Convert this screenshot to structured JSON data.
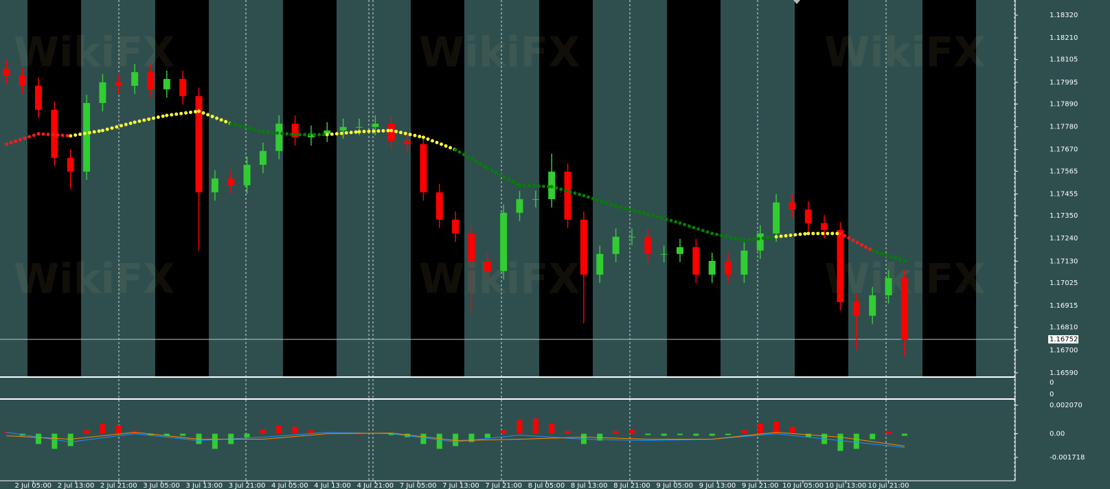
{
  "chart_data": {
    "type": "candlestick",
    "watermark": "WikiFX",
    "xlim": [
      -1.2,
      188.7
    ],
    "xticks": [
      {
        "value": 5,
        "label": "2 Jul 05:00"
      },
      {
        "value": 13,
        "label": "2 Jul 13:00"
      },
      {
        "value": 21,
        "label": "2 Jul 21:00"
      },
      {
        "value": 29,
        "label": "3 Jul 05:00"
      },
      {
        "value": 37,
        "label": "3 Jul 13:00"
      },
      {
        "value": 45,
        "label": "3 Jul 21:00"
      },
      {
        "value": 53,
        "label": "4 Jul 05:00"
      },
      {
        "value": 61,
        "label": "4 Jul 13:00"
      },
      {
        "value": 69,
        "label": "4 Jul 21:00"
      },
      {
        "value": 77,
        "label": "7 Jul 05:00"
      },
      {
        "value": 85,
        "label": "7 Jul 13:00"
      },
      {
        "value": 93,
        "label": "7 Jul 21:00"
      },
      {
        "value": 101,
        "label": "8 Jul 05:00"
      },
      {
        "value": 109,
        "label": "8 Jul 13:00"
      },
      {
        "value": 117,
        "label": "8 Jul 21:00"
      },
      {
        "value": 125,
        "label": "9 Jul 05:00"
      },
      {
        "value": 133,
        "label": "9 Jul 13:00"
      },
      {
        "value": 141,
        "label": "9 Jul 21:00"
      },
      {
        "value": 149,
        "label": "10 Jul 05:00"
      },
      {
        "value": 157,
        "label": "10 Jul 13:00"
      },
      {
        "value": 165,
        "label": "10 Jul 21:00"
      }
    ],
    "ylim": [
      1.16573,
      1.18393
    ],
    "yticks": [
      {
        "value": 1.1832,
        "label": "1.18320"
      },
      {
        "value": 1.1821,
        "label": "1.18210"
      },
      {
        "value": 1.18105,
        "label": "1.18105"
      },
      {
        "value": 1.17995,
        "label": "1.17995"
      },
      {
        "value": 1.1789,
        "label": "1.17890"
      },
      {
        "value": 1.1778,
        "label": "1.17780"
      },
      {
        "value": 1.1767,
        "label": "1.17670"
      },
      {
        "value": 1.17565,
        "label": "1.17565"
      },
      {
        "value": 1.17455,
        "label": "1.17455"
      },
      {
        "value": 1.1735,
        "label": "1.17350"
      },
      {
        "value": 1.1724,
        "label": "1.17240"
      },
      {
        "value": 1.1713,
        "label": "1.17130"
      },
      {
        "value": 1.17025,
        "label": "1.17025"
      },
      {
        "value": 1.16915,
        "label": "1.16915"
      },
      {
        "value": 1.1681,
        "label": "1.16810"
      },
      {
        "value": 1.167,
        "label": "1.16700"
      },
      {
        "value": 1.1659,
        "label": "1.16590"
      }
    ],
    "current_price": 1.16752,
    "up_color": "#32cd32",
    "down_color": "#ff0000",
    "x": [
      0,
      3,
      6,
      9,
      12,
      15,
      18,
      21,
      24,
      27,
      30,
      33,
      36,
      39,
      42,
      45,
      48,
      51,
      54,
      57,
      60,
      63,
      66,
      69,
      72,
      75,
      78,
      81,
      84,
      87,
      90,
      93,
      96,
      99,
      102,
      105,
      108,
      111,
      114,
      117,
      120,
      123,
      126,
      129,
      132,
      135,
      138,
      141,
      144,
      147,
      150,
      153,
      156,
      159,
      162,
      165,
      168
    ],
    "open": [
      1.18061,
      1.18028,
      1.17978,
      1.17862,
      1.17629,
      1.17563,
      1.17895,
      1.17995,
      1.17978,
      1.18044,
      1.17961,
      1.18011,
      1.17928,
      1.17463,
      1.1753,
      1.17497,
      1.17596,
      1.17663,
      1.17795,
      1.17729,
      1.17746,
      1.17762,
      1.17779,
      1.17779,
      1.17795,
      1.17712,
      1.17696,
      1.17463,
      1.17331,
      1.17264,
      1.17131,
      1.17082,
      1.17364,
      1.1743,
      1.1743,
      1.17563,
      1.17331,
      1.17065,
      1.17165,
      1.17248,
      1.17248,
      1.17165,
      1.17165,
      1.17198,
      1.17065,
      1.17131,
      1.17065,
      1.17181,
      1.17264,
      1.17414,
      1.1738,
      1.17314,
      1.17281,
      1.16932,
      1.16866,
      1.16965,
      1.17048
    ],
    "high": [
      1.18101,
      1.18068,
      1.18018,
      1.17902,
      1.17669,
      1.17935,
      1.18035,
      1.18035,
      1.18084,
      1.18084,
      1.18051,
      1.18051,
      1.17968,
      1.1757,
      1.1757,
      1.17636,
      1.17703,
      1.17835,
      1.17835,
      1.17786,
      1.17802,
      1.17819,
      1.17819,
      1.17835,
      1.17835,
      1.17752,
      1.17736,
      1.17503,
      1.17371,
      1.17304,
      1.17171,
      1.17404,
      1.1747,
      1.1747,
      1.1765,
      1.17603,
      1.17371,
      1.17205,
      1.17288,
      1.17288,
      1.17288,
      1.17205,
      1.17238,
      1.17238,
      1.17171,
      1.17171,
      1.17221,
      1.17304,
      1.17454,
      1.17454,
      1.1742,
      1.17354,
      1.17321,
      1.16972,
      1.17005,
      1.17088,
      1.17088
    ],
    "low": [
      1.17988,
      1.17938,
      1.17822,
      1.17589,
      1.1748,
      1.17523,
      1.17855,
      1.17938,
      1.17938,
      1.17921,
      1.17921,
      1.17888,
      1.1718,
      1.17423,
      1.17457,
      1.17457,
      1.17556,
      1.17623,
      1.17689,
      1.17689,
      1.17706,
      1.17722,
      1.17739,
      1.17739,
      1.17672,
      1.17656,
      1.17423,
      1.17291,
      1.17224,
      1.1688,
      1.17042,
      1.17042,
      1.17324,
      1.1739,
      1.1739,
      1.17291,
      1.1683,
      1.17025,
      1.17125,
      1.17208,
      1.17125,
      1.17125,
      1.17125,
      1.17025,
      1.17025,
      1.17025,
      1.17025,
      1.17141,
      1.17224,
      1.1734,
      1.17274,
      1.17241,
      1.16892,
      1.167,
      1.16826,
      1.16925,
      1.1667
    ],
    "close": [
      1.18028,
      1.17978,
      1.17862,
      1.17629,
      1.17563,
      1.17895,
      1.17995,
      1.17978,
      1.18044,
      1.17961,
      1.18011,
      1.17928,
      1.17463,
      1.1753,
      1.17497,
      1.17596,
      1.17663,
      1.17795,
      1.17729,
      1.17746,
      1.17762,
      1.17779,
      1.17779,
      1.17795,
      1.17712,
      1.17696,
      1.17463,
      1.17331,
      1.17264,
      1.17131,
      1.17082,
      1.17364,
      1.1743,
      1.1743,
      1.17563,
      1.17331,
      1.17065,
      1.17165,
      1.17248,
      1.17248,
      1.17165,
      1.17165,
      1.17198,
      1.17065,
      1.17131,
      1.17065,
      1.17181,
      1.17264,
      1.17414,
      1.1738,
      1.17314,
      1.17281,
      1.16932,
      1.16866,
      1.16965,
      1.17048,
      1.1675
    ],
    "ma": {
      "x": [
        0,
        6,
        12,
        18,
        24,
        30,
        36,
        42,
        48,
        54,
        60,
        66,
        72,
        78,
        84,
        90,
        96,
        102,
        108,
        114,
        120,
        126,
        132,
        138,
        144,
        150,
        156,
        162,
        168
      ],
      "values": [
        1.17696,
        1.17746,
        1.17736,
        1.17762,
        1.17802,
        1.17835,
        1.17855,
        1.17795,
        1.17756,
        1.17742,
        1.17742,
        1.17756,
        1.17762,
        1.17729,
        1.17669,
        1.1758,
        1.17497,
        1.1749,
        1.17447,
        1.17397,
        1.17357,
        1.17314,
        1.17264,
        1.17231,
        1.17248,
        1.17264,
        1.17264,
        1.17181,
        1.17131
      ],
      "colors": [
        "#ff1a1a",
        "#ff1a1a",
        "#ffff33",
        "#ffff33",
        "#ffff33",
        "#ffff33",
        "#ffff33",
        "#008000",
        "#008000",
        "#008000",
        "#ffff33",
        "#ffff33",
        "#ffff33",
        "#ffff33",
        "#008000",
        "#008000",
        "#008000",
        "#008000",
        "#008000",
        "#008000",
        "#008000",
        "#008000",
        "#008000",
        "#008000",
        "#ffff33",
        "#ffff33",
        "#ff1a1a",
        "#008000",
        "#008000"
      ]
    },
    "middle_panel": {
      "labels": [
        "0",
        "0"
      ]
    },
    "macd": {
      "ylim": [
        -0.00342,
        0.00247
      ],
      "yticks": [
        {
          "value": 0.00207,
          "label": "0.002070"
        },
        {
          "value": 0,
          "label": "0.00"
        },
        {
          "value": -0.001718,
          "label": "-0.001718"
        }
      ],
      "histogram": [
        0.0001,
        -0.00015,
        -0.00075,
        -0.0011,
        -0.0009,
        0.00025,
        0.0007,
        0.0006,
        0.0002,
        -0.0001,
        -0.00015,
        -0.00015,
        -0.00075,
        -0.0011,
        -0.00075,
        -0.00025,
        0.0003,
        0.0006,
        0.0005,
        0.00025,
        0.0001,
        5e-05,
        0,
        5e-05,
        -0.0001,
        -0.00025,
        -0.00075,
        -0.0011,
        -0.0009,
        -0.0006,
        -0.0003,
        0.00025,
        0.001,
        0.0011,
        0.00075,
        0.0002,
        -0.00075,
        -0.0005,
        0.0002,
        0.0003,
        -0.0001,
        -0.00015,
        -0.0001,
        -0.00015,
        -0.00015,
        -0.0001,
        0.00025,
        0.00075,
        0.0009,
        0.0005,
        -0.00025,
        -0.00075,
        -0.00125,
        -0.0011,
        -0.0004,
        0.00015,
        -0.00015
      ],
      "line_x": [
        0,
        12,
        24,
        36,
        48,
        60,
        72,
        84,
        96,
        108,
        120,
        132,
        144,
        156,
        168
      ],
      "series": [
        {
          "color": "#1e90ff",
          "values": [
            0.0001,
            -0.0006,
            0,
            -0.0005,
            -0.00025,
            0.0001,
            0,
            -0.0006,
            -0.0001,
            -0.0004,
            -0.0005,
            -0.0004,
            0,
            -0.0005,
            -0.001
          ]
        },
        {
          "color": "#ff8c00",
          "values": [
            -0.00015,
            -0.0004,
            0.0001,
            -0.0004,
            -0.0004,
            0,
            5e-05,
            -0.0005,
            -0.0004,
            -0.00025,
            -0.0004,
            -0.0004,
            0.0001,
            -0.00025,
            -0.0009
          ]
        }
      ]
    }
  }
}
